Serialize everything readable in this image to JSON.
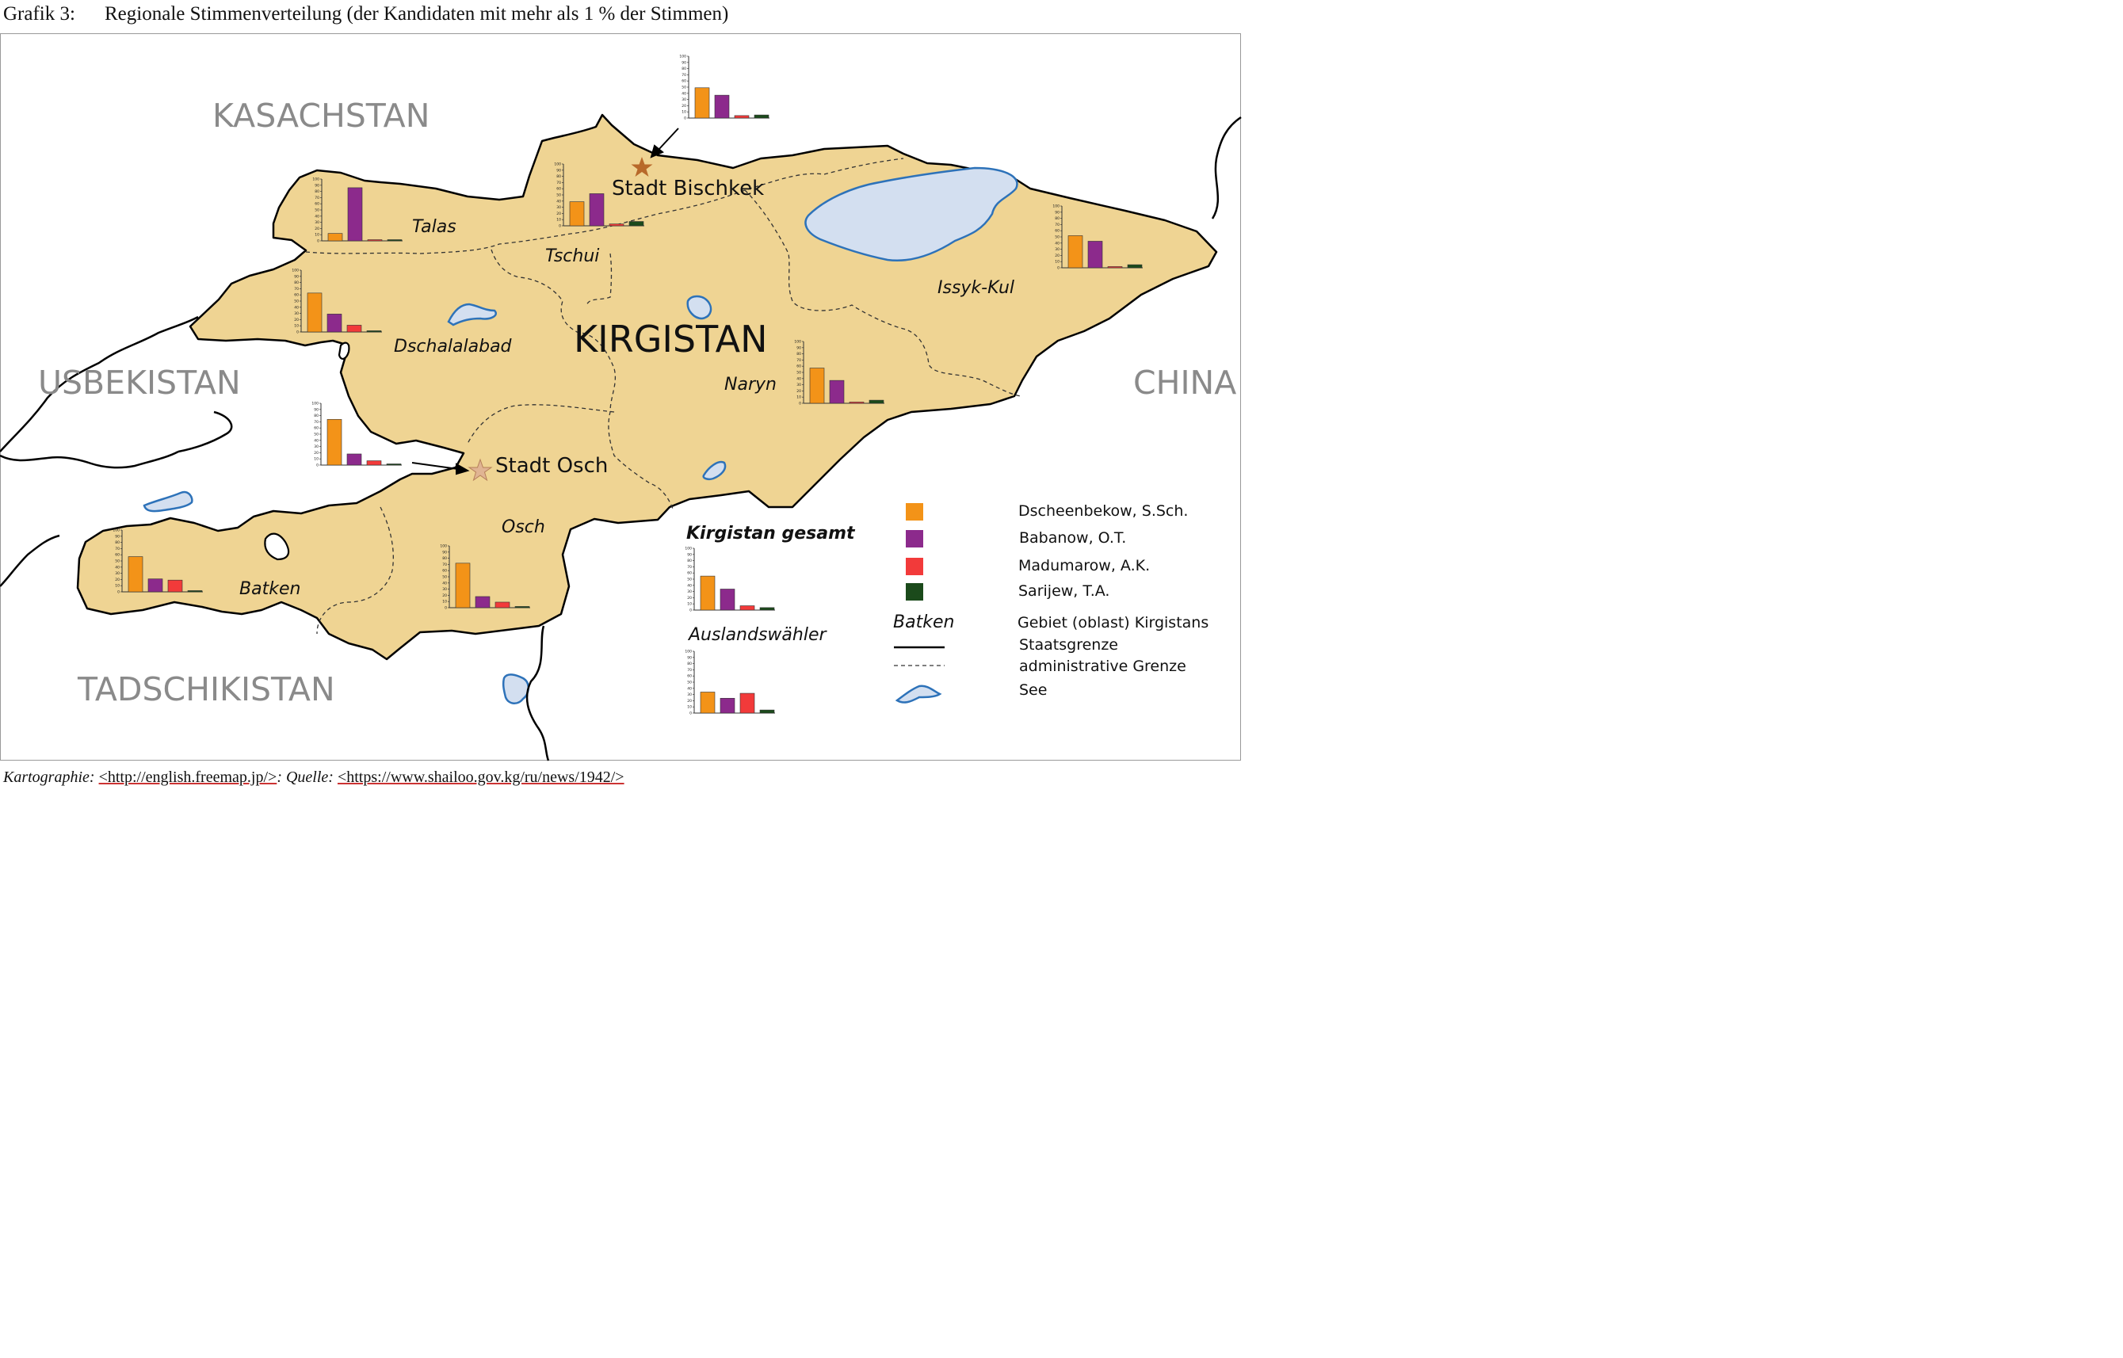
{
  "header": {
    "label": "Grafik 3:",
    "title": "Regionale Stimmenverteilung (der Kandidaten mit mehr als 1 % der Stimmen)"
  },
  "map": {
    "countries": [
      "KASACHSTAN",
      "USBEKISTAN",
      "CHINA",
      "TADSCHIKISTAN"
    ],
    "main_country": "KIRGISTAN",
    "regions": [
      "Talas",
      "Tschui",
      "Dschalalabad",
      "Issyk-Kul",
      "Naryn",
      "Osch",
      "Batken"
    ],
    "cities": [
      "Stadt Bischkek",
      "Stadt Osch"
    ],
    "colors": {
      "land": "#efd493",
      "water": "#d3dff0",
      "water_stroke": "#2d72b9"
    }
  },
  "legend": {
    "candidates": [
      {
        "name": "Dscheenbekow, S.Sch.",
        "color": "#f39318"
      },
      {
        "name": "Babanow, O.T.",
        "color": "#8c2a8c"
      },
      {
        "name": "Madumarow, A.K.",
        "color": "#f23a3a"
      },
      {
        "name": "Sarijew, T.A.",
        "color": "#1b4a1b"
      }
    ],
    "region_example": "Batken",
    "region_desc": "Gebiet (oblast) Kirgistans",
    "state_border": "Staatsgrenze",
    "admin_border": "administrative Grenze",
    "lake": "See",
    "total_label": "Kirgistan gesamt",
    "abroad_label": "Auslandswähler"
  },
  "chart_data": [
    {
      "type": "bar",
      "region": "Stadt Bischkek",
      "categories": [
        "Dscheenbekow, S.Sch.",
        "Babanow, O.T.",
        "Madumarow, A.K.",
        "Sarijew, T.A."
      ],
      "values": [
        49,
        37,
        4,
        5
      ],
      "ylim": [
        0,
        100
      ],
      "yticks": [
        "100",
        "90",
        "80",
        "70",
        "60",
        "50",
        "40",
        "30",
        "20",
        "10",
        "0"
      ]
    },
    {
      "type": "bar",
      "region": "Tschui",
      "categories": [
        "Dscheenbekow, S.Sch.",
        "Babanow, O.T.",
        "Madumarow, A.K.",
        "Sarijew, T.A."
      ],
      "values": [
        39,
        52,
        3,
        7
      ],
      "ylim": [
        0,
        100
      ],
      "yticks": [
        "100",
        "90",
        "80",
        "70",
        "60",
        "50",
        "40",
        "30",
        "20",
        "10",
        "0"
      ]
    },
    {
      "type": "bar",
      "region": "Talas",
      "categories": [
        "Dscheenbekow, S.Sch.",
        "Babanow, O.T.",
        "Madumarow, A.K.",
        "Sarijew, T.A."
      ],
      "values": [
        12,
        86,
        1,
        1
      ],
      "ylim": [
        0,
        100
      ],
      "yticks": [
        "100",
        "90",
        "80",
        "70",
        "60",
        "50",
        "40",
        "30",
        "20",
        "10",
        "0"
      ]
    },
    {
      "type": "bar",
      "region": "Dschalalabad",
      "categories": [
        "Dscheenbekow, S.Sch.",
        "Babanow, O.T.",
        "Madumarow, A.K.",
        "Sarijew, T.A."
      ],
      "values": [
        63,
        29,
        11,
        2
      ],
      "ylim": [
        0,
        100
      ],
      "yticks": [
        "100",
        "90",
        "80",
        "70",
        "60",
        "50",
        "40",
        "30",
        "20",
        "10",
        "0"
      ]
    },
    {
      "type": "bar",
      "region": "Stadt Osch",
      "categories": [
        "Dscheenbekow, S.Sch.",
        "Babanow, O.T.",
        "Madumarow, A.K.",
        "Sarijew, T.A."
      ],
      "values": [
        74,
        18,
        7,
        1
      ],
      "ylim": [
        0,
        100
      ],
      "yticks": [
        "100",
        "90",
        "80",
        "70",
        "60",
        "50",
        "40",
        "30",
        "20",
        "10",
        "0"
      ]
    },
    {
      "type": "bar",
      "region": "Issyk-Kul",
      "categories": [
        "Dscheenbekow, S.Sch.",
        "Babanow, O.T.",
        "Madumarow, A.K.",
        "Sarijew, T.A."
      ],
      "values": [
        52,
        43,
        2,
        5
      ],
      "ylim": [
        0,
        100
      ],
      "yticks": [
        "100",
        "90",
        "80",
        "70",
        "60",
        "50",
        "40",
        "30",
        "20",
        "10",
        "0"
      ]
    },
    {
      "type": "bar",
      "region": "Naryn",
      "categories": [
        "Dscheenbekow, S.Sch.",
        "Babanow, O.T.",
        "Madumarow, A.K.",
        "Sarijew, T.A."
      ],
      "values": [
        57,
        37,
        2,
        5
      ],
      "ylim": [
        0,
        100
      ],
      "yticks": [
        "100",
        "90",
        "80",
        "70",
        "60",
        "50",
        "40",
        "30",
        "20",
        "10",
        "0"
      ]
    },
    {
      "type": "bar",
      "region": "Batken",
      "categories": [
        "Dscheenbekow, S.Sch.",
        "Babanow, O.T.",
        "Madumarow, A.K.",
        "Sarijew, T.A."
      ],
      "values": [
        57,
        21,
        19,
        2
      ],
      "ylim": [
        0,
        100
      ],
      "yticks": [
        "100",
        "90",
        "80",
        "70",
        "60",
        "50",
        "40",
        "30",
        "20",
        "10",
        "0"
      ]
    },
    {
      "type": "bar",
      "region": "Osch",
      "categories": [
        "Dscheenbekow, S.Sch.",
        "Babanow, O.T.",
        "Madumarow, A.K.",
        "Sarijew, T.A."
      ],
      "values": [
        72,
        18,
        9,
        2
      ],
      "ylim": [
        0,
        100
      ],
      "yticks": [
        "100",
        "90",
        "80",
        "70",
        "60",
        "50",
        "40",
        "30",
        "20",
        "10",
        "0"
      ]
    },
    {
      "type": "bar",
      "region": "Kirgistan gesamt",
      "categories": [
        "Dscheenbekow, S.Sch.",
        "Babanow, O.T.",
        "Madumarow, A.K.",
        "Sarijew, T.A."
      ],
      "values": [
        55,
        34,
        7,
        4
      ],
      "ylim": [
        0,
        100
      ],
      "yticks": [
        "100",
        "90",
        "80",
        "70",
        "60",
        "50",
        "40",
        "30",
        "20",
        "10",
        "0"
      ]
    },
    {
      "type": "bar",
      "region": "Auslandswähler",
      "categories": [
        "Dscheenbekow, S.Sch.",
        "Babanow, O.T.",
        "Madumarow, A.K.",
        "Sarijew, T.A."
      ],
      "values": [
        34,
        24,
        32,
        5
      ],
      "ylim": [
        0,
        100
      ],
      "yticks": [
        "100",
        "90",
        "80",
        "70",
        "60",
        "50",
        "40",
        "30",
        "20",
        "10",
        "0"
      ]
    }
  ],
  "footer": {
    "carto_label": "Kartographie:",
    "carto_url": "<http://english.freemap.jp/>",
    "sep": ":",
    "source_label": "Quelle:",
    "source_url": "<https://www.shailoo.gov.kg/ru/news/1942/>"
  }
}
